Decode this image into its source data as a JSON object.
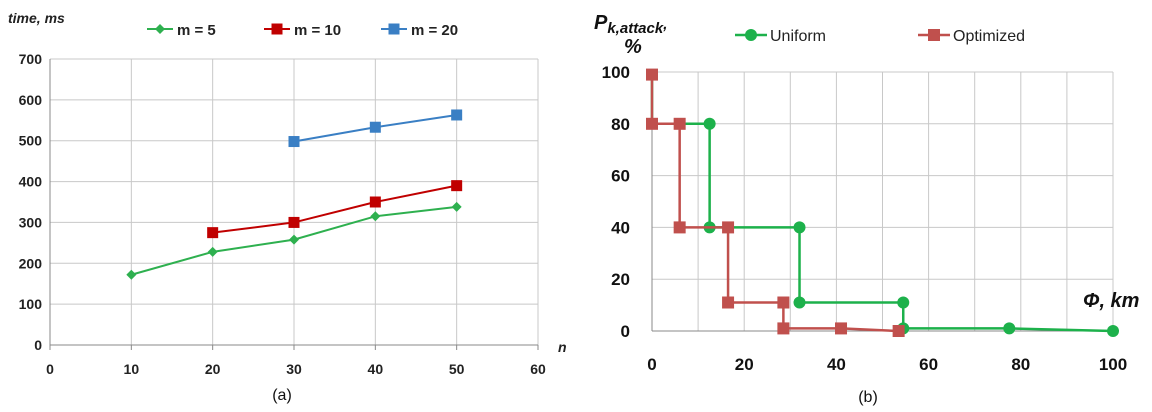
{
  "chart_data": [
    {
      "type": "line",
      "caption": "(a)",
      "ylabel": "time, ms",
      "xlabel": "n",
      "xlim": [
        0,
        60
      ],
      "ylim": [
        0,
        700
      ],
      "x_ticks": [
        0,
        10,
        20,
        30,
        40,
        50,
        60
      ],
      "y_ticks": [
        0,
        100,
        200,
        300,
        400,
        500,
        600,
        700
      ],
      "grid": true,
      "legend_position": "top",
      "series": [
        {
          "name": "m = 5",
          "color": "#2eb04f",
          "marker": "diamond",
          "x": [
            10,
            20,
            30,
            40,
            50
          ],
          "y": [
            172,
            228,
            258,
            315,
            338
          ]
        },
        {
          "name": "m = 10",
          "color": "#c00000",
          "marker": "square",
          "x": [
            20,
            30,
            40,
            50
          ],
          "y": [
            275,
            300,
            350,
            390
          ]
        },
        {
          "name": "m = 20",
          "color": "#3a7fc4",
          "marker": "square",
          "x": [
            30,
            40,
            50
          ],
          "y": [
            498,
            533,
            563
          ]
        }
      ]
    },
    {
      "type": "line",
      "step": true,
      "caption": "(b)",
      "ylabel_main": "P",
      "ylabel_sub": "k,attack",
      "ylabel_suffix": ",",
      "ylabel_unit": "%",
      "xlabel": "Φ, km",
      "xlim": [
        0,
        100
      ],
      "ylim": [
        0,
        100
      ],
      "x_ticks": [
        0,
        20,
        40,
        60,
        80,
        100
      ],
      "y_ticks": [
        0,
        20,
        40,
        60,
        80,
        100
      ],
      "grid": true,
      "legend_position": "top",
      "series": [
        {
          "name": "Uniform",
          "color": "#1db14b",
          "marker": "circle",
          "points": [
            [
              0,
              100
            ],
            [
              0,
              80
            ],
            [
              12.5,
              80
            ],
            [
              12.5,
              40
            ],
            [
              32,
              40
            ],
            [
              32,
              11
            ],
            [
              54.5,
              11
            ],
            [
              54.5,
              1
            ],
            [
              77.5,
              1
            ],
            [
              100,
              0
            ]
          ],
          "markers": [
            [
              12.5,
              80
            ],
            [
              12.5,
              40
            ],
            [
              32,
              40
            ],
            [
              32,
              11
            ],
            [
              54.5,
              11
            ],
            [
              54.5,
              1
            ],
            [
              77.5,
              1
            ],
            [
              100,
              0
            ]
          ]
        },
        {
          "name": "Optimized",
          "color": "#c0504d",
          "marker": "square",
          "points": [
            [
              0,
              99
            ],
            [
              0,
              80
            ],
            [
              6,
              80
            ],
            [
              6,
              40
            ],
            [
              16.5,
              40
            ],
            [
              16.5,
              11
            ],
            [
              28.5,
              11
            ],
            [
              28.5,
              1
            ],
            [
              41,
              1
            ],
            [
              53.5,
              0
            ]
          ],
          "markers": [
            [
              0,
              99
            ],
            [
              0,
              80
            ],
            [
              6,
              80
            ],
            [
              6,
              40
            ],
            [
              16.5,
              40
            ],
            [
              16.5,
              11
            ],
            [
              28.5,
              11
            ],
            [
              28.5,
              1
            ],
            [
              41,
              1
            ],
            [
              53.5,
              0
            ]
          ]
        }
      ]
    }
  ]
}
